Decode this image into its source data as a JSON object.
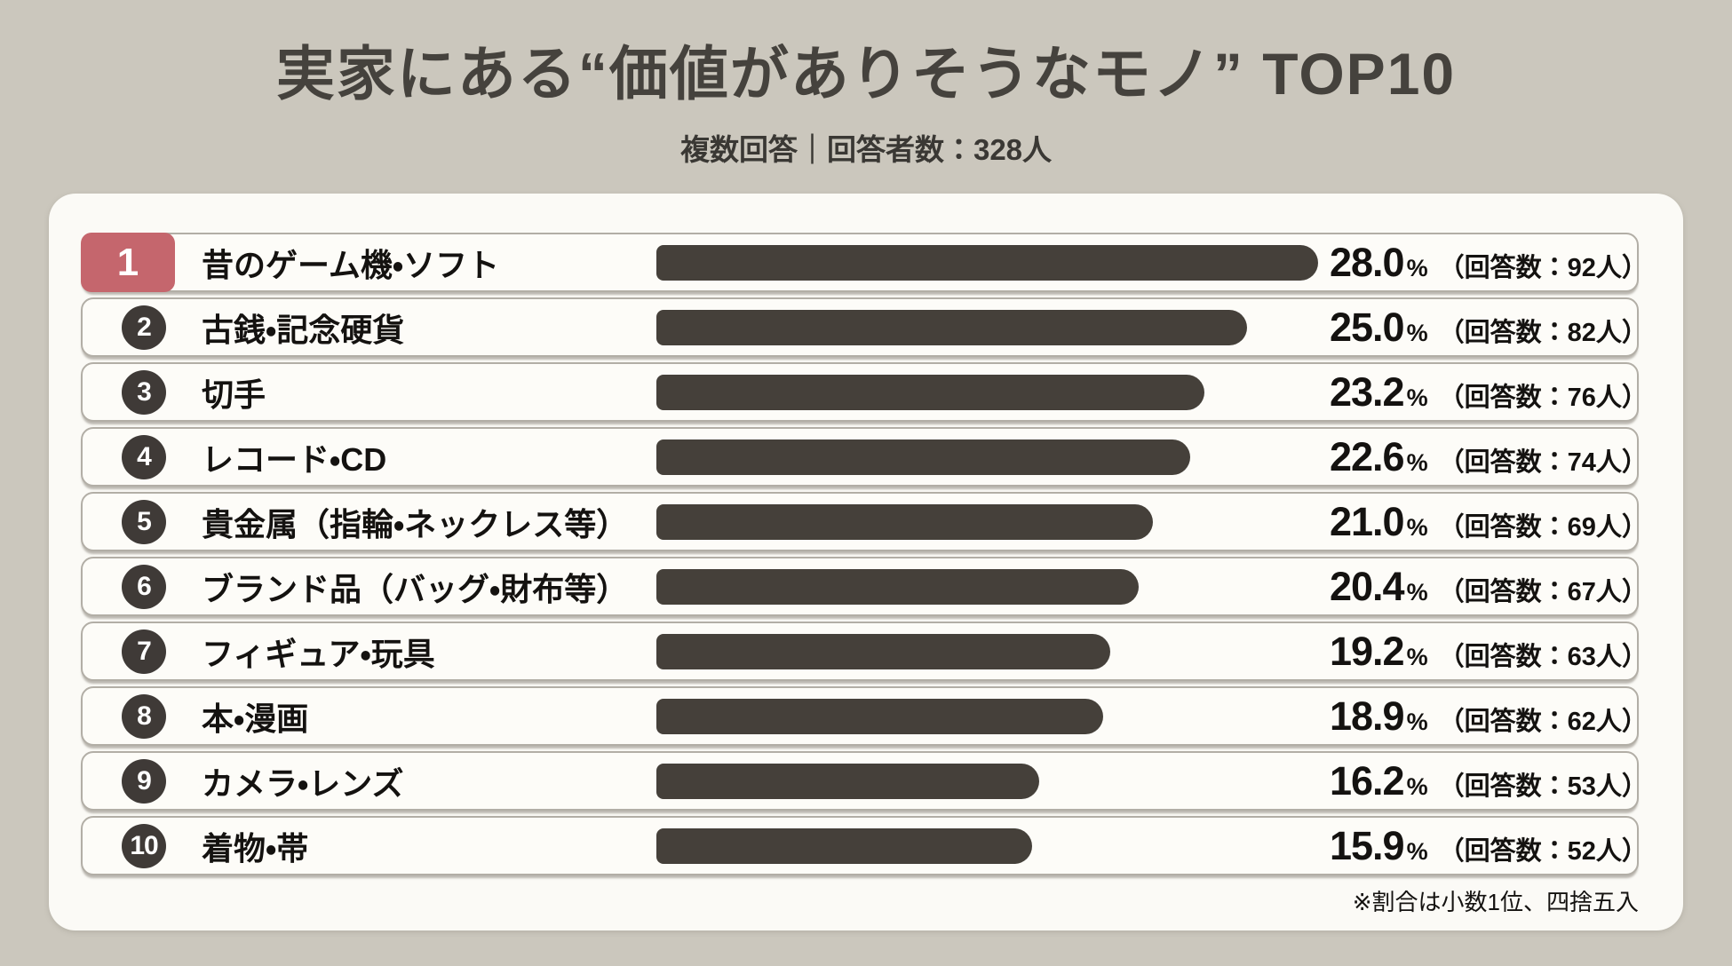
{
  "header": {
    "title": "実家にある“価値がありそうなモノ” TOP10",
    "subtitle": "複数回答｜回答者数：328人"
  },
  "footnote": "※割合は小数1位、四捨五入",
  "colors": {
    "page_bg": "#cbc7bd",
    "panel_bg": "#fbfaf6",
    "row_bg": "#fdfcf8",
    "row_border": "#b2aea6",
    "bar": "#45403a",
    "rank1_bg": "#c5666d",
    "rank_circle_bg": "#3f3a37",
    "title_text": "#45423d",
    "subtitle_text": "#3a3834",
    "body_text": "#141210"
  },
  "chart_data": {
    "type": "bar",
    "orientation": "horizontal",
    "title": "実家にある“価値がありそうなモノ” TOP10",
    "subtitle": "複数回答｜回答者数：328人",
    "footnote": "※割合は小数1位、四捨五入",
    "value_unit": "%",
    "respondents": 328,
    "xmax": 28,
    "grid": false,
    "legend": false,
    "categories": [
      "昔のゲーム機・ソフト",
      "古銭・記念硬貨",
      "切手",
      "レコード・CD",
      "貴金属（指輪・ネックレス等）",
      "ブランド品（バッグ・財布等）",
      "フィギュア・玩具",
      "本・漫画",
      "カメラ・レンズ",
      "着物・帯"
    ],
    "values": [
      28.0,
      25.0,
      23.2,
      22.6,
      21.0,
      20.4,
      19.2,
      18.9,
      16.2,
      15.9
    ],
    "counts": [
      92,
      82,
      76,
      74,
      69,
      67,
      63,
      62,
      53,
      52
    ],
    "items": [
      {
        "rank": "1",
        "label": "昔のゲーム機・ソフト",
        "value": 28.0,
        "pct": "28.0",
        "unit": "%",
        "count": "（回答数：92人）"
      },
      {
        "rank": "2",
        "label": "古銭・記念硬貨",
        "value": 25.0,
        "pct": "25.0",
        "unit": "%",
        "count": "（回答数：82人）"
      },
      {
        "rank": "3",
        "label": "切手",
        "value": 23.2,
        "pct": "23.2",
        "unit": "%",
        "count": "（回答数：76人）"
      },
      {
        "rank": "4",
        "label": "レコード・CD",
        "value": 22.6,
        "pct": "22.6",
        "unit": "%",
        "count": "（回答数：74人）"
      },
      {
        "rank": "5",
        "label": "貴金属（指輪・ネックレス等）",
        "value": 21.0,
        "pct": "21.0",
        "unit": "%",
        "count": "（回答数：69人）"
      },
      {
        "rank": "6",
        "label": "ブランド品（バッグ・財布等）",
        "value": 20.4,
        "pct": "20.4",
        "unit": "%",
        "count": "（回答数：67人）"
      },
      {
        "rank": "7",
        "label": "フィギュア・玩具",
        "value": 19.2,
        "pct": "19.2",
        "unit": "%",
        "count": "（回答数：63人）"
      },
      {
        "rank": "8",
        "label": "本・漫画",
        "value": 18.9,
        "pct": "18.9",
        "unit": "%",
        "count": "（回答数：62人）"
      },
      {
        "rank": "9",
        "label": "カメラ・レンズ",
        "value": 16.2,
        "pct": "16.2",
        "unit": "%",
        "count": "（回答数：53人）"
      },
      {
        "rank": "10",
        "label": "着物・帯",
        "value": 15.9,
        "pct": "15.9",
        "unit": "%",
        "count": "（回答数：52人）"
      }
    ]
  }
}
